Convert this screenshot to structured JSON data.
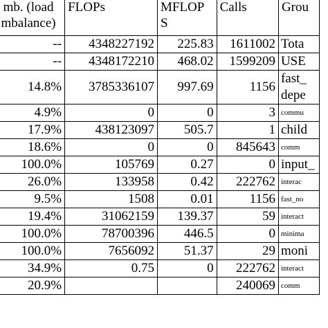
{
  "headers": {
    "imbalance_line1": "mb. (load",
    "imbalance_line2": "mbalance)",
    "flops": "FLOPs",
    "mflops_line1": "MFLOP",
    "mflops_line2": "S",
    "calls": "Calls",
    "group": "Grou"
  },
  "rows": [
    {
      "imbalance": "--",
      "flops": "4348227192",
      "mflops": "225.83",
      "calls": "1611002",
      "group": "Tota",
      "bold": false,
      "small": false
    },
    {
      "imbalance": "--",
      "flops": "4348172210",
      "mflops": "468.02",
      "calls": "1599209",
      "group": "USE",
      "bold": false,
      "small": false
    },
    {
      "imbalance": "14.8%",
      "flops": "3785336107",
      "mflops": "997.69",
      "calls": "1156",
      "group": "fast_",
      "group2": "depe",
      "bold": true,
      "small": false
    },
    {
      "imbalance": "4.9%",
      "flops": "0",
      "mflops": "0",
      "calls": "3",
      "group": "commu",
      "bold": false,
      "small": true
    },
    {
      "imbalance": "17.9%",
      "flops": "438123097",
      "mflops": "505.7",
      "calls": "1",
      "group": "child",
      "bold": false,
      "small": false
    },
    {
      "imbalance": "18.6%",
      "flops": "0",
      "mflops": "0",
      "calls": "845643",
      "group": "comm",
      "bold": false,
      "small": true
    },
    {
      "imbalance": "100.0%",
      "flops": "105769",
      "mflops": "0.27",
      "calls": "0",
      "group": "input_",
      "bold": false,
      "small": false
    },
    {
      "imbalance": "26.0%",
      "flops": "133958",
      "mflops": "0.42",
      "calls": "222762",
      "group": "interac",
      "bold": false,
      "small": true
    },
    {
      "imbalance": "9.5%",
      "flops": "1508",
      "mflops": "0.01",
      "calls": "1156",
      "group": "fast_no",
      "bold": false,
      "small": true
    },
    {
      "imbalance": "19.4%",
      "flops": "31062159",
      "mflops": "139.37",
      "calls": "59",
      "group": "interact",
      "bold": false,
      "small": true
    },
    {
      "imbalance": "100.0%",
      "flops": "78700396",
      "mflops": "446.5",
      "calls": "0",
      "group": "minima",
      "bold": false,
      "small": true
    },
    {
      "imbalance": "100.0%",
      "flops": "7656092",
      "mflops": "51.37",
      "calls": "29",
      "group": "moni",
      "bold": false,
      "small": false
    },
    {
      "imbalance": "34.9%",
      "flops": "0.75",
      "mflops": "0",
      "calls": "222762",
      "group": "interact",
      "bold": false,
      "small": true
    },
    {
      "imbalance": "20.9%",
      "flops": "",
      "mflops": "",
      "calls": "240069",
      "group": "comm",
      "bold": false,
      "small": true
    }
  ]
}
